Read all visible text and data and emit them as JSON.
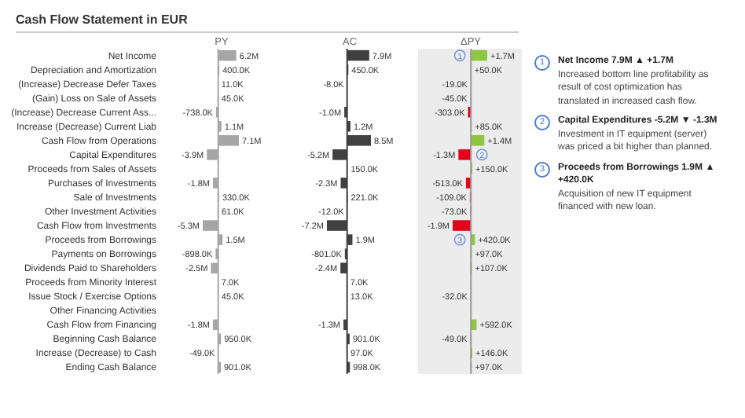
{
  "chart_data": [
    {
      "type": "bar",
      "orientation": "horizontal",
      "title": "Cash Flow Statement in EUR",
      "xlabel": "PY",
      "tick_labels": "y",
      "categories": [
        "Net Income",
        "Depreciation and Amortization",
        "(Increase) Decrease Defer Taxes",
        "(Gain) Loss on Sale of Assets",
        "(Increase) Decrease Current Ass...",
        "Increase (Decrease) Current Liab",
        "Cash Flow from Operations",
        "Capital Expenditures",
        "Proceeds from Sales of Assets",
        "Purchases of Investments",
        "Sale of Investments",
        "Other Investment Activities",
        "Cash Flow from Investments",
        "Proceeds from Borrowings",
        "Payments on Borrowings",
        "Dividends Paid to Shareholders",
        "Proceeds from Minority Interest",
        "Issue Stock / Exercise Options",
        "Other Financing Activities",
        "Cash Flow from Financing",
        "Beginning Cash Balance",
        "Increase (Decrease) to Cash",
        "Ending Cash Balance"
      ],
      "values": [
        6200000,
        400000,
        11000,
        45000,
        -738000,
        1100000,
        7100000,
        -3900000,
        null,
        -1800000,
        330000,
        61000,
        -5300000,
        1500000,
        -898000,
        -2500000,
        7000,
        45000,
        null,
        -1800000,
        950000,
        -49000,
        901000
      ],
      "value_labels": [
        "6.2M",
        "400.0K",
        "11.0K",
        "45.0K",
        "-738.0K",
        "1.1M",
        "7.1M",
        "-3.9M",
        null,
        "-1.8M",
        "330.0K",
        "61.0K",
        "-5.3M",
        "1.5M",
        "-898.0K",
        "-2.5M",
        "7.0K",
        "45.0K",
        null,
        "-1.8M",
        "950.0K",
        "-49.0K",
        "901.0K"
      ],
      "color": "#a6a6a6",
      "ref_lines": [
        {
          "axis": "x",
          "value": 0,
          "color": "#a6a6a6"
        }
      ]
    },
    {
      "type": "bar",
      "orientation": "horizontal",
      "xlabel": "AC",
      "tick_labels": false,
      "categories": [
        "Net Income",
        "Depreciation and Amortization",
        "(Increase) Decrease Defer Taxes",
        "(Gain) Loss on Sale of Assets",
        "(Increase) Decrease Current Ass...",
        "Increase (Decrease) Current Liab",
        "Cash Flow from Operations",
        "Capital Expenditures",
        "Proceeds from Sales of Assets",
        "Purchases of Investments",
        "Sale of Investments",
        "Other Investment Activities",
        "Cash Flow from Investments",
        "Proceeds from Borrowings",
        "Payments on Borrowings",
        "Dividends Paid to Shareholders",
        "Proceeds from Minority Interest",
        "Issue Stock / Exercise Options",
        "Other Financing Activities",
        "Cash Flow from Financing",
        "Beginning Cash Balance",
        "Increase (Decrease) to Cash",
        "Ending Cash Balance"
      ],
      "values": [
        7900000,
        450000,
        -8000,
        null,
        -1000000,
        1200000,
        8500000,
        -5200000,
        150000,
        -2300000,
        221000,
        -12000,
        -7200000,
        1900000,
        -801000,
        -2400000,
        7000,
        13000,
        null,
        -1300000,
        901000,
        97000,
        998000
      ],
      "value_labels": [
        "7.9M",
        "450.0K",
        "-8.0K",
        null,
        "-1.0M",
        "1.2M",
        "8.5M",
        "-5.2M",
        "150.0K",
        "-2.3M",
        "221.0K",
        "-12.0K",
        "-7.2M",
        "1.9M",
        "-801.0K",
        "-2.4M",
        "7.0K",
        "13.0K",
        null,
        "-1.3M",
        "901.0K",
        "97.0K",
        "998.0K"
      ],
      "color": "#404040",
      "ref_lines": [
        {
          "axis": "x",
          "value": 0,
          "color": "#404040"
        }
      ]
    },
    {
      "type": "bar",
      "orientation": "horizontal",
      "xlabel": "ΔPY",
      "tick_labels": false,
      "categories": [
        "Net Income",
        "Depreciation and Amortization",
        "(Increase) Decrease Defer Taxes",
        "(Gain) Loss on Sale of Assets",
        "(Increase) Decrease Current Ass...",
        "Increase (Decrease) Current Liab",
        "Cash Flow from Operations",
        "Capital Expenditures",
        "Proceeds from Sales of Assets",
        "Purchases of Investments",
        "Sale of Investments",
        "Other Investment Activities",
        "Cash Flow from Investments",
        "Proceeds from Borrowings",
        "Payments on Borrowings",
        "Dividends Paid to Shareholders",
        "Proceeds from Minority Interest",
        "Issue Stock / Exercise Options",
        "Other Financing Activities",
        "Cash Flow from Financing",
        "Beginning Cash Balance",
        "Increase (Decrease) to Cash",
        "Ending Cash Balance"
      ],
      "values": [
        1700000,
        50000,
        -19000,
        -45000,
        -303000,
        85000,
        1400000,
        -1300000,
        150000,
        -513000,
        -109000,
        -73000,
        -1900000,
        420000,
        97000,
        107000,
        null,
        -32000,
        null,
        592000,
        -49000,
        146000,
        97000
      ],
      "value_labels": [
        "+1.7M",
        "+50.0K",
        "-19.0K",
        "-45.0K",
        "-303.0K",
        "+85.0K",
        "+1.4M",
        "-1.3M",
        "+150.0K",
        "-513.0K",
        "-109.0K",
        "-73.0K",
        "-1.9M",
        "+420.0K",
        "+97.0K",
        "+107.0K",
        null,
        "-32.0K",
        null,
        "+592.0K",
        "-49.0K",
        "+146.0K",
        "+97.0K"
      ],
      "colors": [
        "#8dc63f",
        "#8dc63f",
        "#e2001a",
        "#e2001a",
        "#e2001a",
        "#8dc63f",
        "#8dc63f",
        "#e2001a",
        "#8dc63f",
        "#e2001a",
        "#e2001a",
        "#e2001a",
        "#e2001a",
        "#8dc63f",
        "#8dc63f",
        "#8dc63f",
        null,
        "#e2001a",
        null,
        "#8dc63f",
        "#e2001a",
        "#8dc63f",
        "#8dc63f"
      ],
      "ref_lines": [
        {
          "axis": "x",
          "value": 0,
          "color": "#999999"
        }
      ],
      "annotations": [
        {
          "text": "1",
          "y": "Net Income"
        },
        {
          "text": "2",
          "y": "Capital Expenditures"
        },
        {
          "text": "3",
          "y": "Proceeds from Borrowings"
        }
      ]
    },
    {
      "type": "other",
      "annotations": [
        "1",
        "Net Income 7.9M ▲ +1.7M",
        "Increased bottom line profitability as result of cost optimization has translated in increased cash flow.",
        "2",
        "Capital Expenditures -5.2M ▼ -1.3M",
        "Investment in IT equipment (server) was priced a bit higher than planned.",
        "3",
        "Proceeds from Borrowings 1.9M ▲ +420.0K",
        "Acquisition of new IT equipment financed with new loan."
      ]
    }
  ]
}
